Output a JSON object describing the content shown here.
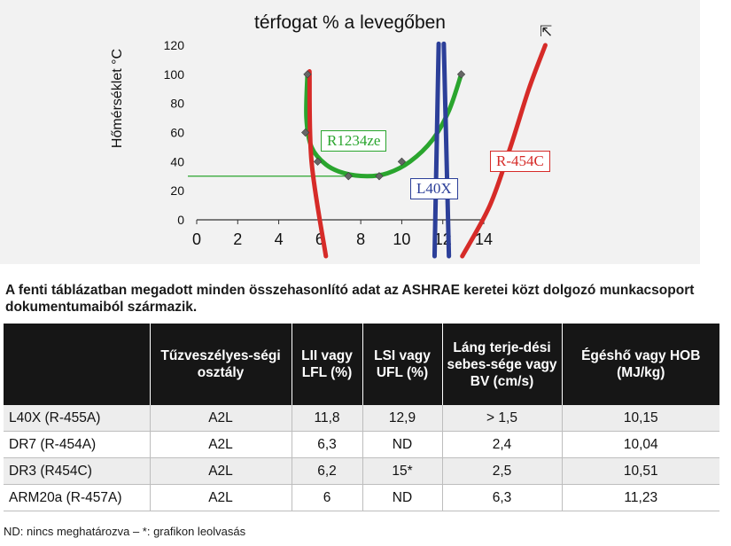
{
  "chart_data": {
    "type": "line",
    "title": "térfogat % a levegőben",
    "ylabel": "Hőmérséklet °C",
    "xlabel": "",
    "xlim": [
      0,
      14
    ],
    "ylim": [
      0,
      120
    ],
    "x_ticks": [
      "0",
      "2",
      "4",
      "6",
      "8",
      "10",
      "12",
      "14"
    ],
    "y_ticks": [
      "0",
      "20",
      "40",
      "60",
      "80",
      "100",
      "120"
    ],
    "grid": false,
    "reference_line": {
      "y": 30,
      "x_range": [
        0,
        9
      ],
      "color": "#2aa52e"
    },
    "series": [
      {
        "name": "R1234ze",
        "color": "#2aa52e",
        "markers": [
          [
            5.4,
            100
          ],
          [
            5.3,
            60
          ],
          [
            5.9,
            40
          ],
          [
            7.4,
            30
          ],
          [
            8.9,
            30
          ],
          [
            10.0,
            40
          ],
          [
            12.9,
            100
          ]
        ],
        "curve": [
          [
            5.4,
            100
          ],
          [
            5.35,
            70
          ],
          [
            5.6,
            50
          ],
          [
            6.3,
            38
          ],
          [
            7.2,
            32
          ],
          [
            8.3,
            30
          ],
          [
            9.3,
            32
          ],
          [
            10.4,
            40
          ],
          [
            11.5,
            55
          ],
          [
            12.3,
            75
          ],
          [
            12.9,
            100
          ]
        ]
      },
      {
        "name": "L40X",
        "color": "#2c3f99",
        "curve": [
          [
            11.6,
            -25
          ],
          [
            11.8,
            121
          ]
        ]
      },
      {
        "name": "L40X",
        "color": "#2c3f99",
        "curve": [
          [
            12.3,
            -25
          ],
          [
            12.05,
            121
          ]
        ]
      },
      {
        "name": "R-454C",
        "color": "#d62b28",
        "curve": [
          [
            5.5,
            102
          ],
          [
            5.6,
            40
          ],
          [
            6.3,
            -25
          ]
        ]
      },
      {
        "name": "R-454C",
        "color": "#d62b28",
        "curve": [
          [
            12.95,
            -25
          ],
          [
            14.3,
            10
          ],
          [
            15.3,
            50
          ],
          [
            16.2,
            90
          ],
          [
            17.0,
            120
          ]
        ]
      }
    ],
    "labels": [
      {
        "text": "R1234ze",
        "color": "#2aa52e"
      },
      {
        "text": "L40X",
        "color": "#2c3f99"
      },
      {
        "text": "R-454C",
        "color": "#d62b28"
      }
    ]
  },
  "caption": "A fenti táblázatban megadott minden összehasonlító adat az ASHRAE keretei közt dolgozó munkacsoport dokumentumaiból származik.",
  "table": {
    "headers": [
      "",
      "Tűzveszélyes-ségi osztály",
      "LII vagy LFL (%)",
      "LSI vagy UFL (%)",
      "Láng terje-dési sebes-sége vagy BV (cm/s)",
      "Égéshő vagy HOB (MJ/kg)"
    ],
    "rows": [
      [
        "L40X (R-455A)",
        "A2L",
        "11,8",
        "12,9",
        "> 1,5",
        "10,15"
      ],
      [
        "DR7 (R-454A)",
        "A2L",
        "6,3",
        "ND",
        "2,4",
        "10,04"
      ],
      [
        "DR3 (R454C)",
        "A2L",
        "6,2",
        "15*",
        "2,5",
        "10,51"
      ],
      [
        "ARM20a (R-457A)",
        "A2L",
        "6",
        "ND",
        "6,3",
        "11,23"
      ]
    ]
  },
  "footnote": "ND: nincs meghatározva – *: grafikon leolvasás",
  "cursor_icon": "mouse-pointer-icon"
}
